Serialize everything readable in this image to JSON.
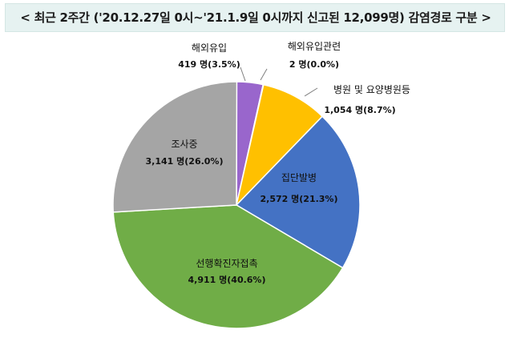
{
  "title": "< 최근 2주간 ('20.12.27일 0시~'21.1.9일 0시까지 신고된 12,099명) 감염경로 구분 >",
  "chart_data": {
    "type": "pie",
    "total": 12099,
    "slices": [
      {
        "label": "해외유입",
        "count": 419,
        "percent": 3.5,
        "value_text": "419 명(3.5%)",
        "color": "#9966cc"
      },
      {
        "label": "해외유입관련",
        "count": 2,
        "percent": 0.0,
        "value_text": "2 명(0.0%)",
        "color": "#f0f0f0"
      },
      {
        "label": "병원 및 요양병원등",
        "count": 1054,
        "percent": 8.7,
        "value_text": "1,054 명(8.7%)",
        "color": "#ffc000"
      },
      {
        "label": "집단발병",
        "count": 2572,
        "percent": 21.3,
        "value_text": "2,572 명(21.3%)",
        "color": "#4472c4"
      },
      {
        "label": "선행확진자접촉",
        "count": 4911,
        "percent": 40.6,
        "value_text": "4,911 명(40.6%)",
        "color": "#70ad47"
      },
      {
        "label": "조사중",
        "count": 3141,
        "percent": 26.0,
        "value_text": "3,141 명(26.0%)",
        "color": "#a5a5a5"
      }
    ]
  }
}
